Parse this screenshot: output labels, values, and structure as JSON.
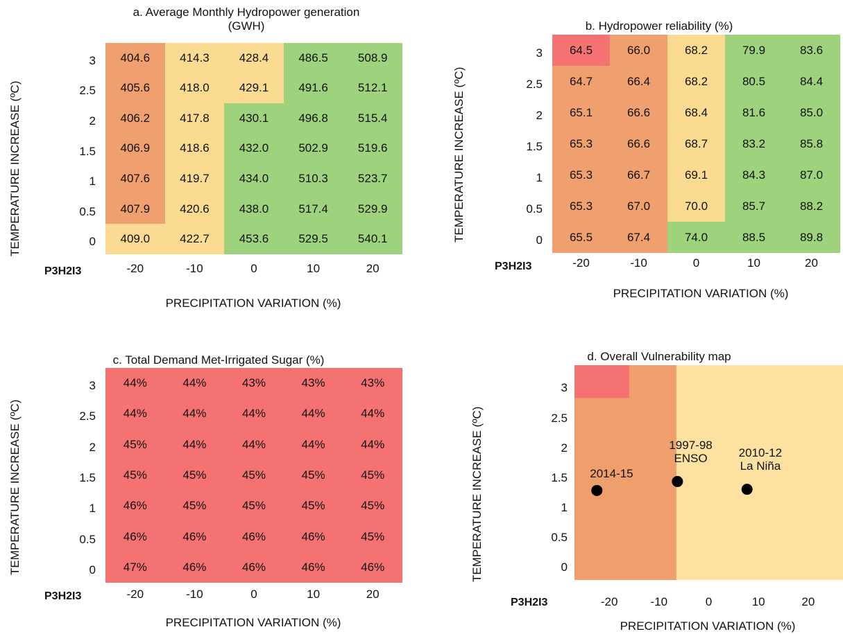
{
  "colors": {
    "green": "#9fd27c",
    "yellow": "#fbdb92",
    "orange": "#f0a06f",
    "red": "#f47272",
    "lightYellow": "#fce1a0",
    "midOrange": "#ef9f6c"
  },
  "chart_data": [
    {
      "id": "a",
      "type": "heatmap",
      "title_line1": "a. Average Monthly Hydropower generation",
      "title_line2": "(GWH)",
      "ylabel": "TEMPERATURE INCREASE (ºC)",
      "xlabel": "PRECIPITATION VARIATION (%)",
      "scenario_label": "P3H2I3",
      "x": [
        "-20",
        "-10",
        "0",
        "10",
        "20"
      ],
      "y": [
        "3",
        "2.5",
        "2",
        "1.5",
        "1",
        "0.5",
        "0"
      ],
      "values": [
        [
          "404.6",
          "414.3",
          "428.4",
          "486.5",
          "508.9"
        ],
        [
          "405.6",
          "418.0",
          "429.1",
          "491.6",
          "512.1"
        ],
        [
          "406.2",
          "417.8",
          "430.1",
          "496.8",
          "515.4"
        ],
        [
          "406.9",
          "418.6",
          "432.0",
          "502.9",
          "519.6"
        ],
        [
          "407.6",
          "419.7",
          "434.0",
          "510.3",
          "523.7"
        ],
        [
          "407.9",
          "420.6",
          "438.0",
          "517.4",
          "529.9"
        ],
        [
          "409.0",
          "422.7",
          "453.6",
          "529.5",
          "540.1"
        ]
      ],
      "colors": [
        [
          "orange",
          "yellow",
          "yellow",
          "green",
          "green"
        ],
        [
          "orange",
          "yellow",
          "yellow",
          "green",
          "green"
        ],
        [
          "orange",
          "yellow",
          "green",
          "green",
          "green"
        ],
        [
          "orange",
          "yellow",
          "green",
          "green",
          "green"
        ],
        [
          "orange",
          "yellow",
          "green",
          "green",
          "green"
        ],
        [
          "orange",
          "yellow",
          "green",
          "green",
          "green"
        ],
        [
          "yellow",
          "yellow",
          "green",
          "green",
          "green"
        ]
      ]
    },
    {
      "id": "b",
      "type": "heatmap",
      "title_line1": "b. Hydropower reliability (%)",
      "ylabel": "TEMPERATURE INCREASE (ºC)",
      "xlabel": "PRECIPITATION VARIATION (%)",
      "scenario_label": "P3H2I3",
      "x": [
        "-20",
        "-10",
        "0",
        "10",
        "20"
      ],
      "y": [
        "3",
        "2.5",
        "2",
        "1.5",
        "1",
        "0.5",
        "0"
      ],
      "values": [
        [
          "64.5",
          "66.0",
          "68.2",
          "79.9",
          "83.6"
        ],
        [
          "64.7",
          "66.4",
          "68.2",
          "80.5",
          "84.4"
        ],
        [
          "65.1",
          "66.6",
          "68.4",
          "81.6",
          "85.0"
        ],
        [
          "65.3",
          "66.6",
          "68.7",
          "83.2",
          "85.8"
        ],
        [
          "65.3",
          "66.7",
          "69.1",
          "84.3",
          "87.0"
        ],
        [
          "65.3",
          "67.0",
          "70.0",
          "85.7",
          "88.2"
        ],
        [
          "65.5",
          "67.4",
          "74.0",
          "88.5",
          "89.8"
        ]
      ],
      "colors": [
        [
          "red",
          "orange",
          "yellow",
          "green",
          "green"
        ],
        [
          "orange",
          "orange",
          "yellow",
          "green",
          "green"
        ],
        [
          "orange",
          "orange",
          "yellow",
          "green",
          "green"
        ],
        [
          "orange",
          "orange",
          "yellow",
          "green",
          "green"
        ],
        [
          "orange",
          "orange",
          "yellow",
          "green",
          "green"
        ],
        [
          "orange",
          "orange",
          "yellow",
          "green",
          "green"
        ],
        [
          "orange",
          "orange",
          "green",
          "green",
          "green"
        ]
      ]
    },
    {
      "id": "c",
      "type": "heatmap",
      "title_line1": "c. Total Demand Met-Irrigated Sugar (%)",
      "ylabel": "TEMPERATURE INCREASE (ºC)",
      "xlabel": "PRECIPITATION VARIATION (%)",
      "scenario_label": "P3H2I3",
      "x": [
        "-20",
        "-10",
        "0",
        "10",
        "20"
      ],
      "y": [
        "3",
        "2.5",
        "2",
        "1.5",
        "1",
        "0.5",
        "0"
      ],
      "values": [
        [
          "44%",
          "44%",
          "43%",
          "43%",
          "43%"
        ],
        [
          "44%",
          "44%",
          "44%",
          "44%",
          "44%"
        ],
        [
          "45%",
          "44%",
          "44%",
          "44%",
          "44%"
        ],
        [
          "45%",
          "45%",
          "45%",
          "45%",
          "45%"
        ],
        [
          "46%",
          "45%",
          "45%",
          "45%",
          "45%"
        ],
        [
          "46%",
          "46%",
          "46%",
          "46%",
          "45%"
        ],
        [
          "47%",
          "46%",
          "46%",
          "46%",
          "46%"
        ]
      ],
      "colors": "red"
    },
    {
      "id": "d",
      "type": "scatter",
      "title_line1": "d. Overall Vulnerability map",
      "ylabel": "TEMPERATURE INCREASE (ºC)",
      "xlabel": "PRECIPITATION VARIATION (%)",
      "scenario_label": "P3H2I3",
      "x_ticks": [
        "-20",
        "-10",
        "0",
        "10",
        "20"
      ],
      "y_ticks": [
        "3",
        "2.5",
        "2",
        "1.5",
        "1",
        "0.5",
        "0"
      ],
      "xlim": [
        -27,
        27
      ],
      "ylim": [
        -0.2,
        3.4
      ],
      "regions": [
        {
          "x0": -27,
          "x1": -6.5,
          "y0": -0.2,
          "y1": 3.4,
          "color": "midOrange"
        },
        {
          "x0": -6.5,
          "x1": 27,
          "y0": -0.2,
          "y1": 3.4,
          "color": "lightYellow"
        },
        {
          "x0": -27,
          "x1": -16,
          "y0": 2.85,
          "y1": 3.4,
          "color": "red"
        }
      ],
      "points": [
        {
          "x": -22.5,
          "y": 1.3,
          "label": "2014-15",
          "label2": ""
        },
        {
          "x": -6.3,
          "y": 1.45,
          "label": "1997-98",
          "label2": "ENSO"
        },
        {
          "x": 7.7,
          "y": 1.32,
          "label": "2010-12",
          "label2": "La Niña"
        }
      ]
    }
  ]
}
